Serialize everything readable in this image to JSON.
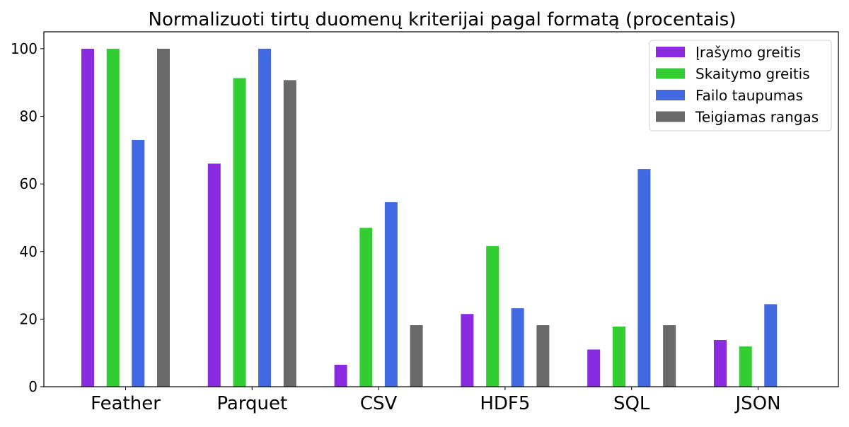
{
  "chart_data": {
    "type": "bar",
    "title": "Normalizuoti tirtų duomenų kriterijai pagal formatą (procentais)",
    "xlabel": "",
    "ylabel": "",
    "categories": [
      "Feather",
      "Parquet",
      "CSV",
      "HDF5",
      "SQL",
      "JSON"
    ],
    "series": [
      {
        "name": "Įrašymo greitis",
        "color": "#8a2be2",
        "values": [
          100,
          66,
          6.5,
          21.5,
          11,
          13.8
        ]
      },
      {
        "name": "Skaitymo greitis",
        "color": "#32cd32",
        "values": [
          100,
          91.3,
          47,
          41.6,
          17.8,
          11.9
        ]
      },
      {
        "name": "Failo taupumas",
        "color": "#4169e1",
        "values": [
          73,
          100,
          54.6,
          23.2,
          64.4,
          24.4
        ]
      },
      {
        "name": "Teigiamas rangas",
        "color": "#696969",
        "values": [
          100,
          90.7,
          18.2,
          18.2,
          18.2,
          0
        ]
      }
    ],
    "ylim": [
      0,
      105
    ],
    "yticks": [
      0,
      20,
      40,
      60,
      80,
      100
    ],
    "grid": false,
    "legend_position": "top-right"
  }
}
